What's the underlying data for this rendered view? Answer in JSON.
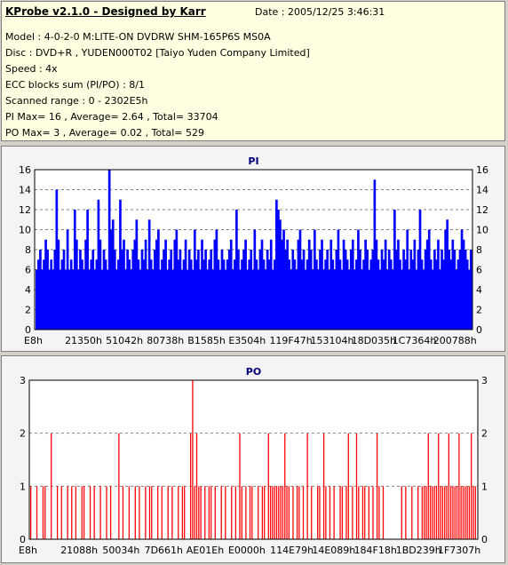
{
  "header": {
    "title": "KProbe v2.1.0 - Designed by Karr",
    "date": "Date : 2005/12/25 3:46:31",
    "lines": [
      "Model : 4-0-2-0 M:LITE-ON DVDRW SHM-165P6S MS0A",
      "Disc : DVD+R , YUDEN000T02 [Taiyo Yuden Company Limited]",
      "Speed : 4x",
      "ECC blocks sum (PI/PO) : 8/1",
      "Scanned range : 0 - 2302E5h",
      "PI Max= 16 , Average= 2.64 , Total= 33704",
      "PO Max= 3 , Average= 0.02 , Total= 529"
    ]
  },
  "colors": {
    "pi": "#0000ff",
    "po": "#ff0000",
    "title": "#00007b",
    "grid": "#808080"
  },
  "chart_data": [
    {
      "type": "bar",
      "title": "PI",
      "x_tick_labels": [
        "E8h",
        "21350h",
        "51042h",
        "80738h",
        "B1585h",
        "E3504h",
        "119F47h",
        "153104h",
        "18D035h",
        "1C7364h",
        "200788h"
      ],
      "ylim": [
        0,
        16
      ],
      "yticks": [
        0,
        2,
        4,
        6,
        8,
        10,
        12,
        14,
        16
      ],
      "grid": true,
      "max": 16,
      "average": 2.64,
      "values": [
        6,
        7,
        8,
        6,
        7,
        9,
        8,
        6,
        7,
        6,
        8,
        14,
        9,
        6,
        7,
        8,
        6,
        10,
        6,
        7,
        6,
        12,
        9,
        6,
        8,
        7,
        6,
        9,
        12,
        6,
        7,
        8,
        6,
        7,
        13,
        9,
        6,
        8,
        7,
        6,
        16,
        10,
        11,
        8,
        6,
        7,
        13,
        8,
        9,
        6,
        8,
        7,
        6,
        8,
        9,
        11,
        7,
        6,
        8,
        7,
        9,
        6,
        11,
        7,
        6,
        8,
        9,
        10,
        6,
        7,
        8,
        9,
        6,
        7,
        8,
        6,
        9,
        10,
        7,
        8,
        6,
        7,
        9,
        6,
        8,
        7,
        6,
        10,
        7,
        8,
        6,
        9,
        7,
        8,
        6,
        7,
        8,
        6,
        9,
        10,
        7,
        6,
        8,
        7,
        6,
        7,
        8,
        9,
        6,
        7,
        12,
        8,
        6,
        7,
        8,
        9,
        6,
        7,
        8,
        6,
        10,
        7,
        6,
        8,
        9,
        7,
        6,
        8,
        7,
        9,
        6,
        7,
        13,
        12,
        11,
        9,
        10,
        8,
        9,
        7,
        6,
        8,
        7,
        6,
        9,
        10,
        7,
        8,
        6,
        7,
        9,
        8,
        6,
        10,
        7,
        6,
        8,
        9,
        6,
        7,
        8,
        6,
        9,
        7,
        6,
        8,
        10,
        7,
        6,
        9,
        8,
        7,
        6,
        8,
        9,
        6,
        7,
        10,
        8,
        6,
        7,
        9,
        8,
        6,
        7,
        8,
        15,
        9,
        7,
        6,
        8,
        7,
        9,
        6,
        8,
        7,
        6,
        12,
        8,
        9,
        7,
        6,
        8,
        7,
        10,
        6,
        8,
        7,
        9,
        6,
        8,
        12,
        7,
        6,
        8,
        9,
        10,
        7,
        6,
        8,
        7,
        9,
        6,
        8,
        7,
        10,
        11,
        8,
        7,
        9,
        8,
        6,
        7,
        8,
        10,
        9,
        8,
        7,
        6,
        8
      ]
    },
    {
      "type": "bar",
      "title": "PO",
      "x_tick_labels": [
        "E8h",
        "21088h",
        "50034h",
        "7D661h",
        "AE01Eh",
        "E0000h",
        "114E79h",
        "14E089h",
        "184F18h",
        "1BD239h",
        "1F7307h"
      ],
      "ylim": [
        0,
        3
      ],
      "yticks": [
        0,
        1,
        2,
        3
      ],
      "grid": true,
      "max": 3,
      "average": 0.02,
      "values": [
        1,
        0,
        0,
        1,
        0,
        0,
        1,
        1,
        0,
        0,
        2,
        0,
        0,
        1,
        0,
        1,
        0,
        0,
        1,
        0,
        1,
        0,
        1,
        0,
        0,
        1,
        1,
        0,
        0,
        1,
        0,
        1,
        0,
        0,
        1,
        0,
        0,
        1,
        0,
        1,
        0,
        0,
        0,
        2,
        0,
        1,
        0,
        0,
        1,
        0,
        0,
        1,
        0,
        1,
        0,
        0,
        1,
        0,
        1,
        1,
        0,
        0,
        1,
        0,
        1,
        0,
        0,
        1,
        0,
        1,
        0,
        0,
        1,
        0,
        1,
        1,
        0,
        0,
        2,
        3,
        1,
        2,
        1,
        1,
        0,
        1,
        0,
        1,
        1,
        0,
        1,
        0,
        0,
        1,
        0,
        1,
        0,
        0,
        1,
        0,
        1,
        0,
        2,
        1,
        0,
        1,
        0,
        1,
        1,
        0,
        0,
        1,
        0,
        1,
        1,
        0,
        2,
        1,
        1,
        1,
        1,
        1,
        1,
        1,
        2,
        1,
        1,
        0,
        1,
        0,
        1,
        1,
        0,
        1,
        0,
        2,
        0,
        1,
        0,
        0,
        1,
        1,
        0,
        2,
        1,
        0,
        1,
        0,
        1,
        0,
        0,
        1,
        1,
        0,
        1,
        2,
        0,
        1,
        0,
        2,
        1,
        0,
        1,
        1,
        0,
        1,
        0,
        1,
        0,
        2,
        1,
        0,
        1,
        0,
        0,
        0,
        0,
        0,
        0,
        0,
        0,
        1,
        0,
        1,
        0,
        0,
        1,
        0,
        0,
        1,
        0,
        1,
        1,
        1,
        2,
        1,
        1,
        1,
        1,
        2,
        1,
        1,
        1,
        1,
        2,
        1,
        1,
        1,
        1,
        2,
        1,
        1,
        1,
        1,
        1,
        2,
        1,
        1
      ]
    }
  ]
}
